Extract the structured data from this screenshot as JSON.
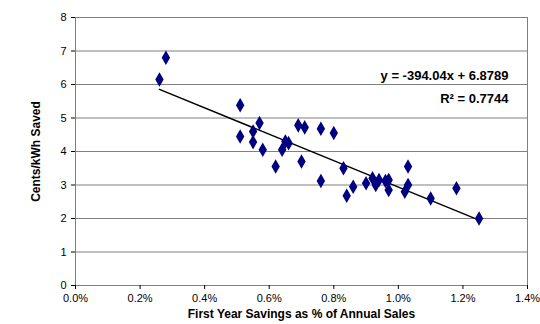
{
  "chart_data": {
    "type": "scatter",
    "x_label": "First Year Savings as % of Annual Sales",
    "y_label": "Cents/kWh Saved",
    "x": [
      0.0026,
      0.0028,
      0.0051,
      0.0051,
      0.0055,
      0.0055,
      0.0057,
      0.0058,
      0.0062,
      0.0064,
      0.0065,
      0.0066,
      0.0069,
      0.007,
      0.0071,
      0.0076,
      0.0076,
      0.008,
      0.0083,
      0.0084,
      0.0086,
      0.009,
      0.0092,
      0.0093,
      0.0094,
      0.0096,
      0.0097,
      0.0097,
      0.0102,
      0.0103,
      0.0103,
      0.011,
      0.0118,
      0.0125
    ],
    "values": [
      6.15,
      6.8,
      5.38,
      4.45,
      4.6,
      4.28,
      4.85,
      4.05,
      3.55,
      4.05,
      4.3,
      4.25,
      4.78,
      3.7,
      4.72,
      4.68,
      3.12,
      4.55,
      3.5,
      2.68,
      2.95,
      3.05,
      3.2,
      3.0,
      3.15,
      3.12,
      2.85,
      3.15,
      2.8,
      3.0,
      3.55,
      2.6,
      2.9,
      2.0
    ],
    "color": "#000080",
    "marker": "diamond",
    "trendline": {
      "x": [
        0.0026,
        0.0125
      ],
      "values": [
        5.854,
        1.953
      ],
      "color": "#000000"
    },
    "annotations": [
      "y = -394.04x + 6.8789",
      "R² = 0.7744"
    ],
    "xlim": [
      0,
      0.014
    ],
    "xticks": [
      {
        "value": 0,
        "label": "0.0%"
      },
      {
        "value": 0.002,
        "label": "0.2%"
      },
      {
        "value": 0.004,
        "label": "0.4%"
      },
      {
        "value": 0.006,
        "label": "0.6%"
      },
      {
        "value": 0.008,
        "label": "0.8%"
      },
      {
        "value": 0.01,
        "label": "1.0%"
      },
      {
        "value": 0.012,
        "label": "1.2%"
      },
      {
        "value": 0.014,
        "label": "1.4%"
      }
    ],
    "ylim": [
      0,
      8
    ],
    "yticks": [
      0,
      1,
      2,
      3,
      4,
      5,
      6,
      7,
      8
    ],
    "grid": true
  }
}
